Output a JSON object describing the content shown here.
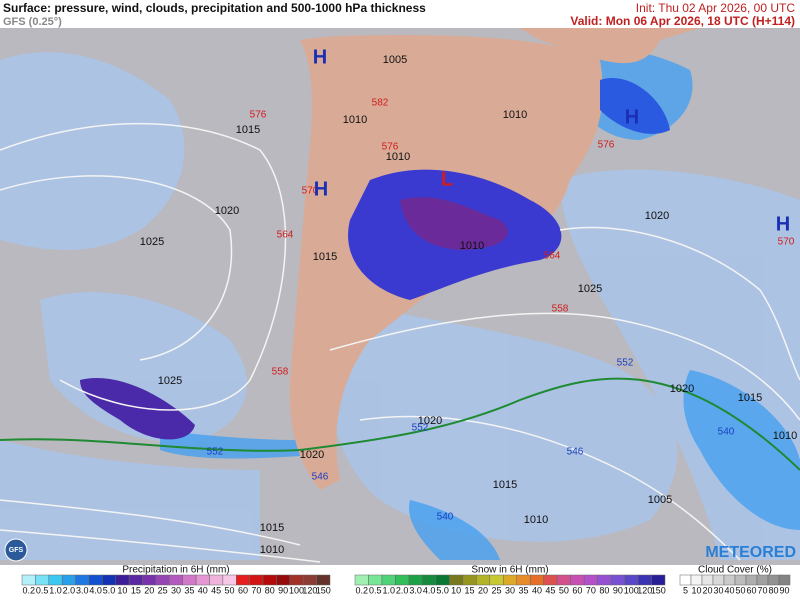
{
  "header": {
    "title": "Surface: pressure, wind, clouds, precipitation and 500-1000 hPa thickness",
    "model": "GFS (0.25°)",
    "init": "Init: Thu 02 Apr 2026, 00 UTC",
    "valid": "Valid: Mon 06 Apr 2026, 18 UTC (H+114)"
  },
  "map": {
    "isobar_labels": [
      "1005",
      "1010",
      "1010",
      "1010",
      "1015",
      "1020",
      "1025",
      "1015",
      "1010",
      "1020",
      "1025",
      "1025",
      "1020",
      "1015",
      "1010",
      "1020",
      "1020",
      "1015",
      "1010",
      "1005",
      "1015",
      "1010"
    ],
    "thickness_labels": [
      "576",
      "582",
      "576",
      "570",
      "564",
      "564",
      "558",
      "558",
      "576",
      "570"
    ],
    "thickness_labels_cold": [
      "552",
      "552",
      "552",
      "546",
      "546",
      "540",
      "540"
    ],
    "highs": [
      "H",
      "H",
      "H",
      "H"
    ],
    "lows": [
      "L"
    ]
  },
  "legend": {
    "precipitation": {
      "title": "Precipitation in 6H (mm)",
      "ticks": [
        "0.2",
        "0.5",
        "1.0",
        "2.0",
        "3.0",
        "4.0",
        "5.0",
        "10",
        "15",
        "20",
        "25",
        "30",
        "35",
        "40",
        "45",
        "50",
        "60",
        "70",
        "80",
        "90",
        "100",
        "120",
        "150"
      ],
      "colors": [
        "#b4f0fa",
        "#78e1f5",
        "#3cc8f0",
        "#28a0eb",
        "#1e78e1",
        "#1450d2",
        "#1432b4",
        "#3c1e96",
        "#5a28a0",
        "#7832aa",
        "#9646b4",
        "#b45abe",
        "#d278c8",
        "#e696d2",
        "#f0b4dc",
        "#f5c8e6",
        "#e61e1e",
        "#d21414",
        "#b40a0a",
        "#960a0a",
        "#a03228",
        "#8c3c32",
        "#643228"
      ]
    },
    "snow": {
      "title": "Snow in 6H (mm)",
      "ticks": [
        "0.2",
        "0.5",
        "1.0",
        "2.0",
        "3.0",
        "4.0",
        "5.0",
        "10",
        "15",
        "20",
        "25",
        "30",
        "35",
        "40",
        "45",
        "50",
        "60",
        "70",
        "80",
        "90",
        "100",
        "120",
        "150"
      ],
      "colors": [
        "#a0f0b4",
        "#78e696",
        "#50d278",
        "#32be5a",
        "#1ea046",
        "#148c3c",
        "#0a7832",
        "#78781e",
        "#96961e",
        "#b4b428",
        "#c8c832",
        "#dcaa28",
        "#e68c28",
        "#e66e28",
        "#dc5050",
        "#d2508c",
        "#c850b4",
        "#b450c8",
        "#9650d2",
        "#7850d2",
        "#5a46c8",
        "#3c32b4",
        "#281e96"
      ]
    },
    "cloud": {
      "title": "Cloud Cover (%)",
      "ticks": [
        "5",
        "10",
        "20",
        "30",
        "40",
        "50",
        "60",
        "70",
        "80",
        "90"
      ],
      "colors": [
        "#ffffff",
        "#f4f4f4",
        "#e6e6e6",
        "#d8d8d8",
        "#cacaca",
        "#bcbcbc",
        "#aeaeae",
        "#a0a0a0",
        "#929292",
        "#848484"
      ]
    }
  },
  "brand": {
    "logo": "METEORED",
    "badge": "GFS"
  }
}
